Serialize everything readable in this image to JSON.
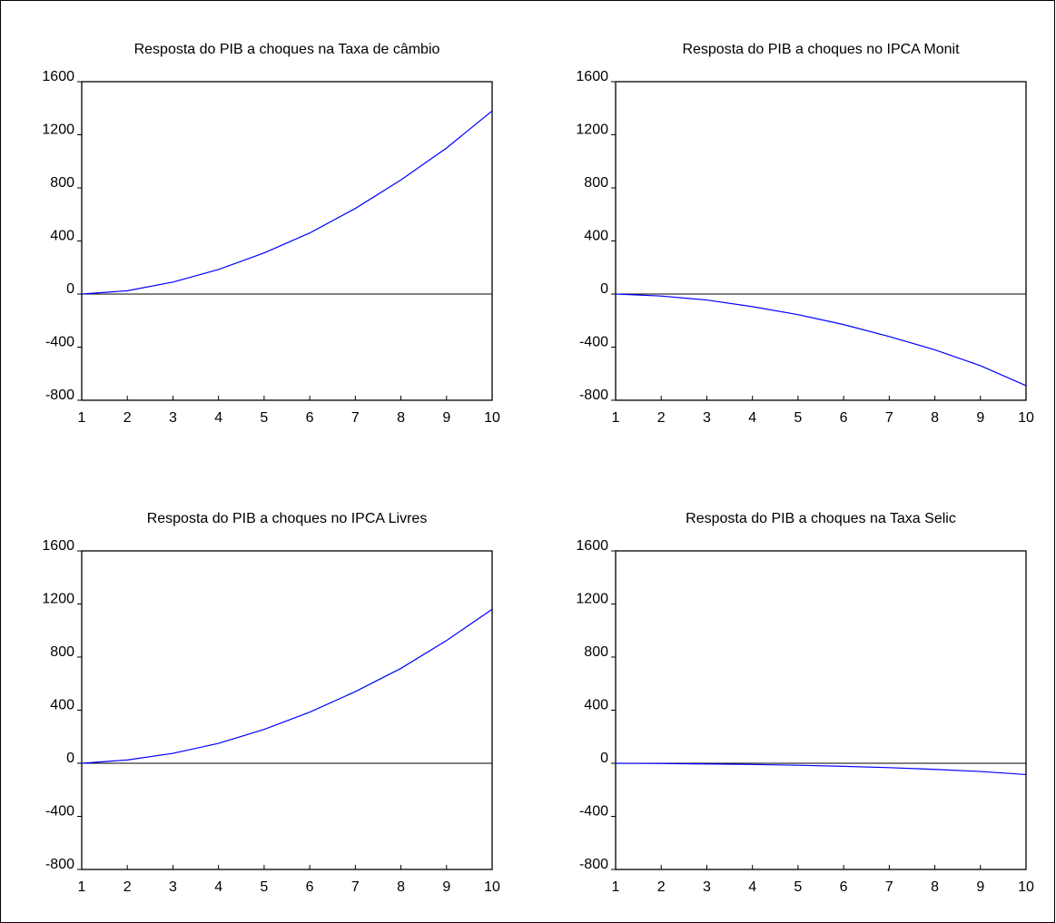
{
  "chart_data": [
    {
      "type": "line",
      "title": "Resposta do PIB a choques na Taxa de câmbio",
      "x": [
        1,
        2,
        3,
        4,
        5,
        6,
        7,
        8,
        9,
        10
      ],
      "values": [
        0,
        25,
        90,
        185,
        310,
        460,
        645,
        860,
        1100,
        1380
      ],
      "color": "#0000ff",
      "xlim": [
        1,
        10
      ],
      "xticks": [
        1,
        2,
        3,
        4,
        5,
        6,
        7,
        8,
        9,
        10
      ],
      "ylim": [
        -800,
        1600
      ],
      "yticks": [
        -800,
        -400,
        0,
        400,
        800,
        1200,
        1600
      ],
      "zero_line": true
    },
    {
      "type": "line",
      "title": "Resposta do PIB a choques no IPCA Monit",
      "x": [
        1,
        2,
        3,
        4,
        5,
        6,
        7,
        8,
        9,
        10
      ],
      "values": [
        0,
        -15,
        -45,
        -95,
        -155,
        -230,
        -320,
        -420,
        -540,
        -690
      ],
      "color": "#0000ff",
      "xlim": [
        1,
        10
      ],
      "xticks": [
        1,
        2,
        3,
        4,
        5,
        6,
        7,
        8,
        9,
        10
      ],
      "ylim": [
        -800,
        1600
      ],
      "yticks": [
        -800,
        -400,
        0,
        400,
        800,
        1200,
        1600
      ],
      "zero_line": true
    },
    {
      "type": "line",
      "title": "Resposta do PIB a choques no IPCA Livres",
      "x": [
        1,
        2,
        3,
        4,
        5,
        6,
        7,
        8,
        9,
        10
      ],
      "values": [
        0,
        25,
        75,
        150,
        255,
        385,
        540,
        715,
        925,
        1160
      ],
      "color": "#0000ff",
      "xlim": [
        1,
        10
      ],
      "xticks": [
        1,
        2,
        3,
        4,
        5,
        6,
        7,
        8,
        9,
        10
      ],
      "ylim": [
        -800,
        1600
      ],
      "yticks": [
        -800,
        -400,
        0,
        400,
        800,
        1200,
        1600
      ],
      "zero_line": true
    },
    {
      "type": "line",
      "title": "Resposta do PIB a choques na Taxa Selic",
      "x": [
        1,
        2,
        3,
        4,
        5,
        6,
        7,
        8,
        9,
        10
      ],
      "values": [
        0,
        -2,
        -5,
        -9,
        -15,
        -23,
        -33,
        -46,
        -62,
        -85
      ],
      "color": "#0000ff",
      "xlim": [
        1,
        10
      ],
      "xticks": [
        1,
        2,
        3,
        4,
        5,
        6,
        7,
        8,
        9,
        10
      ],
      "ylim": [
        -800,
        1600
      ],
      "yticks": [
        -800,
        -400,
        0,
        400,
        800,
        1200,
        1600
      ],
      "zero_line": true
    }
  ]
}
